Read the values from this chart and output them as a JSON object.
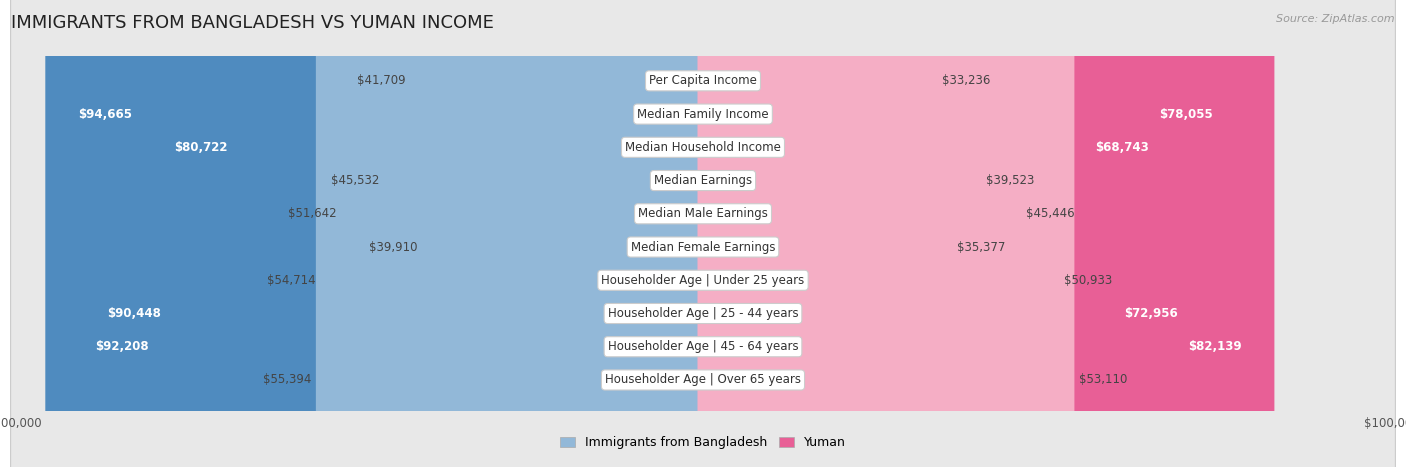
{
  "title": "IMMIGRANTS FROM BANGLADESH VS YUMAN INCOME",
  "source": "Source: ZipAtlas.com",
  "categories": [
    "Per Capita Income",
    "Median Family Income",
    "Median Household Income",
    "Median Earnings",
    "Median Male Earnings",
    "Median Female Earnings",
    "Householder Age | Under 25 years",
    "Householder Age | 25 - 44 years",
    "Householder Age | 45 - 64 years",
    "Householder Age | Over 65 years"
  ],
  "bangladesh_values": [
    41709,
    94665,
    80722,
    45532,
    51642,
    39910,
    54714,
    90448,
    92208,
    55394
  ],
  "yuman_values": [
    33236,
    78055,
    68743,
    39523,
    45446,
    35377,
    50933,
    72956,
    82139,
    53110
  ],
  "max_val": 100000,
  "bangladesh_color_light": "#92b8d8",
  "bangladesh_color_dark": "#4f8bbf",
  "yuman_color_light": "#f5aec5",
  "yuman_color_dark": "#e85f96",
  "bg_color": "#ffffff",
  "row_bg_even": "#f5f5f5",
  "row_bg_odd": "#e8e8e8",
  "center_label_bg": "#ffffff",
  "title_fontsize": 13,
  "cat_fontsize": 8.5,
  "value_fontsize": 8.5,
  "legend_fontsize": 9,
  "source_fontsize": 8,
  "dark_threshold_bangladesh": 0.78,
  "dark_threshold_yuman": 0.65
}
